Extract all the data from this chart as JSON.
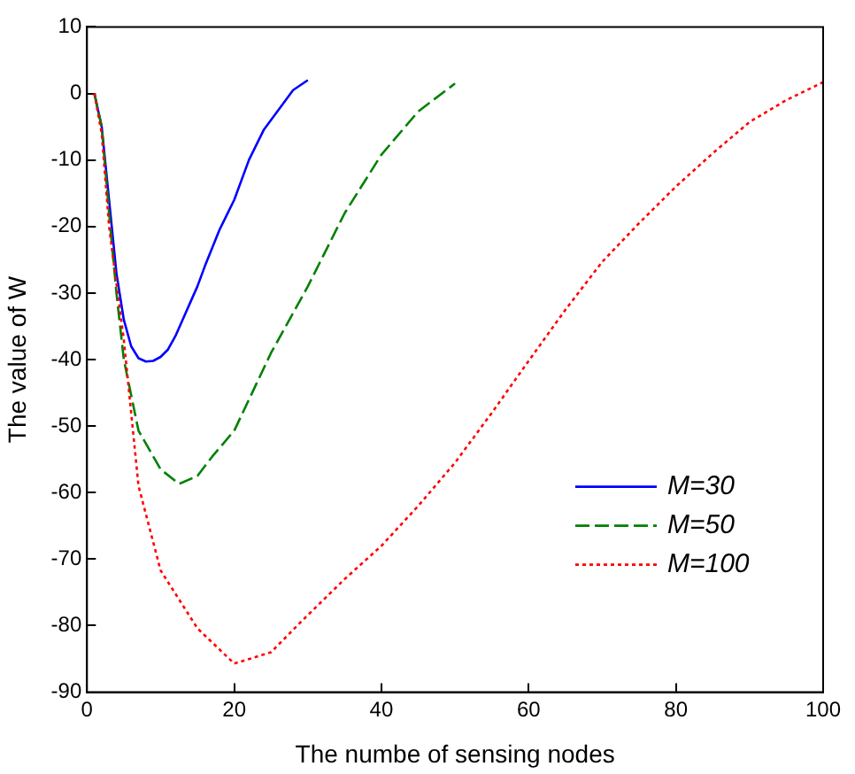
{
  "chart_data": {
    "type": "line",
    "xlabel": "The numbe of sensing nodes",
    "ylabel": "The value of W",
    "xlim": [
      0,
      100
    ],
    "ylim": [
      -90,
      10
    ],
    "xticks": [
      0,
      20,
      40,
      60,
      80,
      100
    ],
    "yticks": [
      -90,
      -80,
      -70,
      -60,
      -50,
      -40,
      -30,
      -20,
      -10,
      0,
      10
    ],
    "grid": false,
    "legend": "bottom right",
    "marker": "none",
    "series": [
      {
        "name": "M=30",
        "color": "#0000ff",
        "line_style": "solid",
        "x": [
          1,
          2,
          3,
          4,
          5,
          6,
          7,
          8,
          9,
          10,
          11,
          12,
          13,
          14,
          15,
          16,
          18,
          20,
          22,
          24,
          26,
          28,
          30
        ],
        "values": [
          0,
          -5,
          -16,
          -27,
          -34,
          -38,
          -39.8,
          -40.3,
          -40.2,
          -39.6,
          -38.5,
          -36.5,
          -34,
          -31.5,
          -29,
          -26,
          -20.5,
          -16,
          -10,
          -5.5,
          -2.5,
          0.5,
          2
        ]
      },
      {
        "name": "M=50",
        "color": "#008000",
        "line_style": "dashed",
        "x": [
          1,
          2,
          3,
          4,
          5,
          7,
          10,
          12.5,
          15,
          17,
          20,
          25,
          30,
          35,
          40,
          45,
          50
        ],
        "values": [
          0,
          -5,
          -18,
          -30,
          -40,
          -50.7,
          -56.5,
          -58.7,
          -57.5,
          -54.6,
          -50.7,
          -39,
          -29,
          -18,
          -9.2,
          -2.7,
          1.5
        ]
      },
      {
        "name": "M=100",
        "color": "#ff0000",
        "line_style": "dotted",
        "x": [
          1,
          2,
          3,
          5,
          7,
          10,
          15,
          20,
          25,
          29,
          35,
          40,
          45,
          50,
          55,
          60,
          65,
          70,
          75,
          80,
          85,
          90,
          95,
          100
        ],
        "values": [
          0,
          -6,
          -20,
          -37,
          -59,
          -71.7,
          -80.4,
          -85.7,
          -84,
          -79.5,
          -73,
          -68,
          -62,
          -55.5,
          -48,
          -40.2,
          -32.5,
          -25.3,
          -19.5,
          -14,
          -9,
          -4.3,
          -1,
          1.7
        ]
      }
    ]
  }
}
